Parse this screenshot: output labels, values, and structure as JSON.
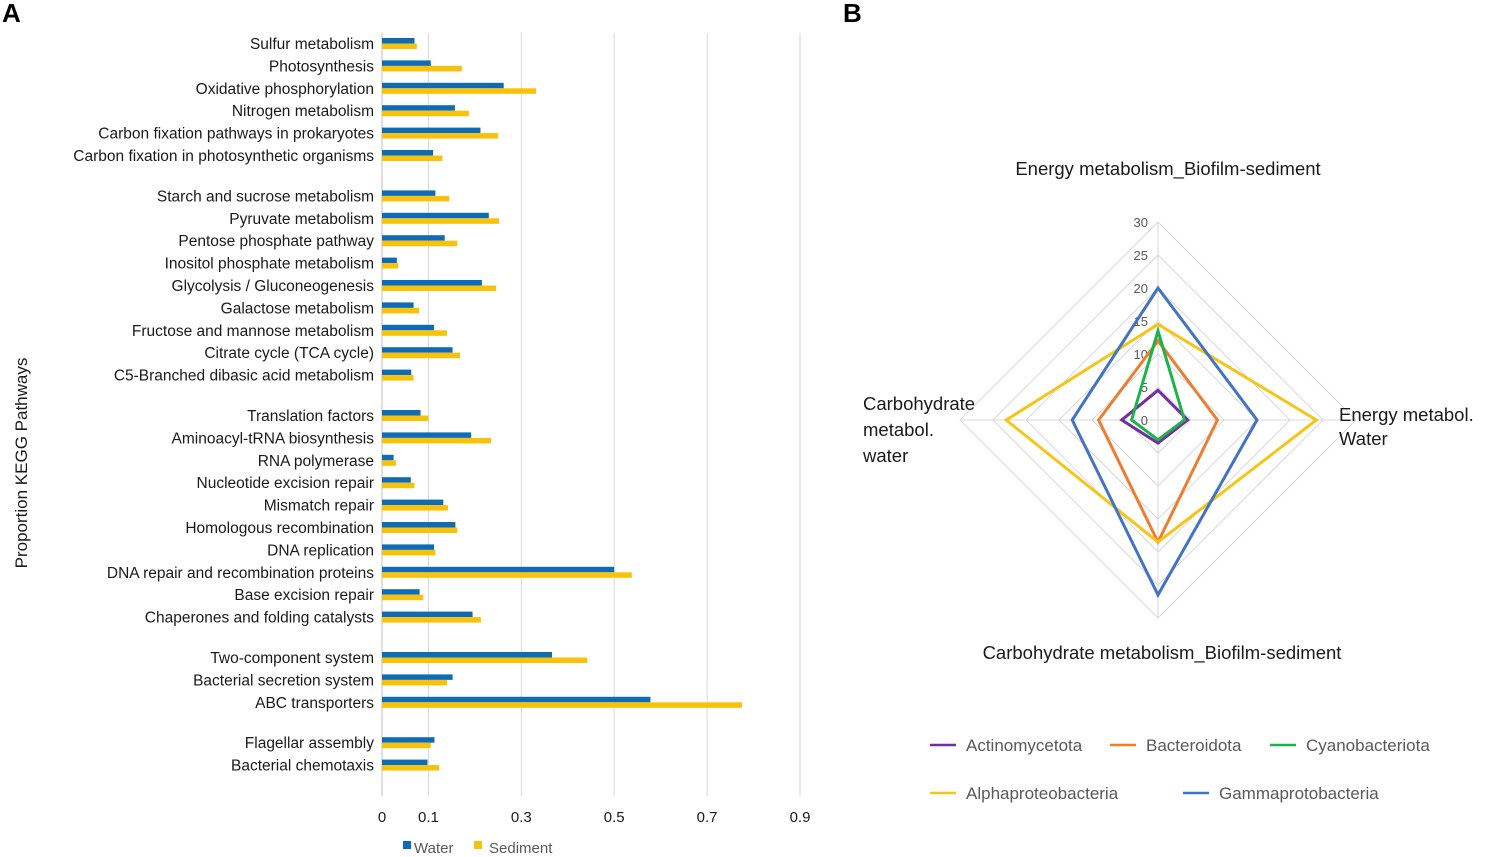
{
  "panels": {
    "a_label": "A",
    "b_label": "B"
  },
  "colors": {
    "water": "#0E6CB7",
    "sediment": "#F9C20A",
    "grid": "#D9D9D9",
    "radar_grid": "#D9D9D9",
    "text": "#1a1a1a",
    "legend_text": "#595959",
    "actinomycetota": "#7030A0",
    "bacteroidota": "#ED7D31",
    "cyanobacteriota": "#1DB34B",
    "alphaproteobacteria": "#F5C518",
    "gammaproteobacteria": "#4472C4"
  },
  "chart_data": [
    {
      "type": "bar",
      "orientation": "horizontal",
      "ylabel": "Proportion KEGG Pathways",
      "xlim": [
        0,
        0.9
      ],
      "x_ticks": [
        0,
        0.1,
        0.3,
        0.5,
        0.7,
        0.9
      ],
      "x_tick_labels": [
        "0",
        "0.1",
        "0.3",
        "0.5",
        "0.7",
        "0.9"
      ],
      "grid": true,
      "legend_position": "bottom",
      "legend": [
        "Water",
        "Sediment"
      ],
      "groups": [
        {
          "categories": [
            "Sulfur metabolism",
            "Photosynthesis",
            "Oxidative phosphorylation",
            "Nitrogen metabolism",
            "Carbon fixation pathways in prokaryotes",
            "Carbon fixation in photosynthetic organisms"
          ],
          "water": [
            0.07,
            0.105,
            0.262,
            0.157,
            0.212,
            0.11
          ],
          "sediment": [
            0.075,
            0.172,
            0.332,
            0.187,
            0.25,
            0.13
          ]
        },
        {
          "categories": [
            "Starch and sucrose metabolism",
            "Pyruvate metabolism",
            "Pentose phosphate pathway",
            "Inositol phosphate metabolism",
            "Glycolysis / Gluconeogenesis",
            "Galactose metabolism",
            "Fructose and mannose metabolism",
            "Citrate cycle (TCA cycle)",
            "C5-Branched dibasic acid metabolism"
          ],
          "water": [
            0.115,
            0.23,
            0.135,
            0.032,
            0.215,
            0.068,
            0.112,
            0.152,
            0.063
          ],
          "sediment": [
            0.145,
            0.252,
            0.162,
            0.035,
            0.246,
            0.08,
            0.14,
            0.168,
            0.068
          ]
        },
        {
          "categories": [
            "Translation factors",
            "Aminoacyl-tRNA biosynthesis",
            "RNA polymerase",
            "Nucleotide excision repair",
            "Mismatch repair",
            "Homologous recombination",
            "DNA replication",
            "DNA repair and recombination proteins",
            "Base excision repair",
            "Chaperones and folding catalysts"
          ],
          "water": [
            0.083,
            0.192,
            0.025,
            0.062,
            0.132,
            0.158,
            0.112,
            0.5,
            0.081,
            0.195
          ],
          "sediment": [
            0.1,
            0.235,
            0.03,
            0.07,
            0.142,
            0.162,
            0.115,
            0.538,
            0.089,
            0.213
          ]
        },
        {
          "categories": [
            "Two-component system",
            "Bacterial secretion system",
            "ABC transporters"
          ],
          "water": [
            0.366,
            0.152,
            0.578
          ],
          "sediment": [
            0.442,
            0.14,
            0.775
          ]
        },
        {
          "categories": [
            "Flagellar assembly",
            "Bacterial chemotaxis"
          ],
          "water": [
            0.113,
            0.098
          ],
          "sediment": [
            0.105,
            0.123
          ]
        }
      ]
    },
    {
      "type": "radar",
      "axes": [
        "Energy metabolism_Biofilm-sediment",
        "Energy metabol. Water",
        "Carbohydrate metabolism_Biofilm-sediment",
        "Carbohydrate metabol. water"
      ],
      "axis_label_lines": {
        "top": [
          "Energy metabolism_Biofilm-sediment"
        ],
        "right": [
          "Energy metabol.",
          "Water"
        ],
        "bottom": [
          "Carbohydrate metabolism_Biofilm-sediment"
        ],
        "left": [
          "Carbohydrate",
          "metabol.",
          "water"
        ]
      },
      "rlim": [
        0,
        30
      ],
      "r_ticks": [
        0,
        5,
        10,
        15,
        20,
        25,
        30
      ],
      "r_tick_labels": [
        "0",
        "5",
        "10",
        "15",
        "20",
        "25",
        "30"
      ],
      "legend_position": "bottom",
      "series": [
        {
          "name": "Actinomycetota",
          "color_key": "actinomycetota",
          "values": [
            4.5,
            4.5,
            3.5,
            5.5
          ]
        },
        {
          "name": "Bacteroidota",
          "color_key": "bacteroidota",
          "values": [
            12,
            9,
            18.5,
            9
          ]
        },
        {
          "name": "Cyanobacteriota",
          "color_key": "cyanobacteriota",
          "values": [
            13.5,
            4,
            3,
            4
          ]
        },
        {
          "name": "Alphaproteobacteria",
          "color_key": "alphaproteobacteria",
          "values": [
            14.5,
            24,
            18.5,
            23
          ]
        },
        {
          "name": "Gammaprotobacteria",
          "color_key": "gammaproteobacteria",
          "values": [
            20,
            15,
            26.5,
            13
          ]
        }
      ]
    }
  ]
}
